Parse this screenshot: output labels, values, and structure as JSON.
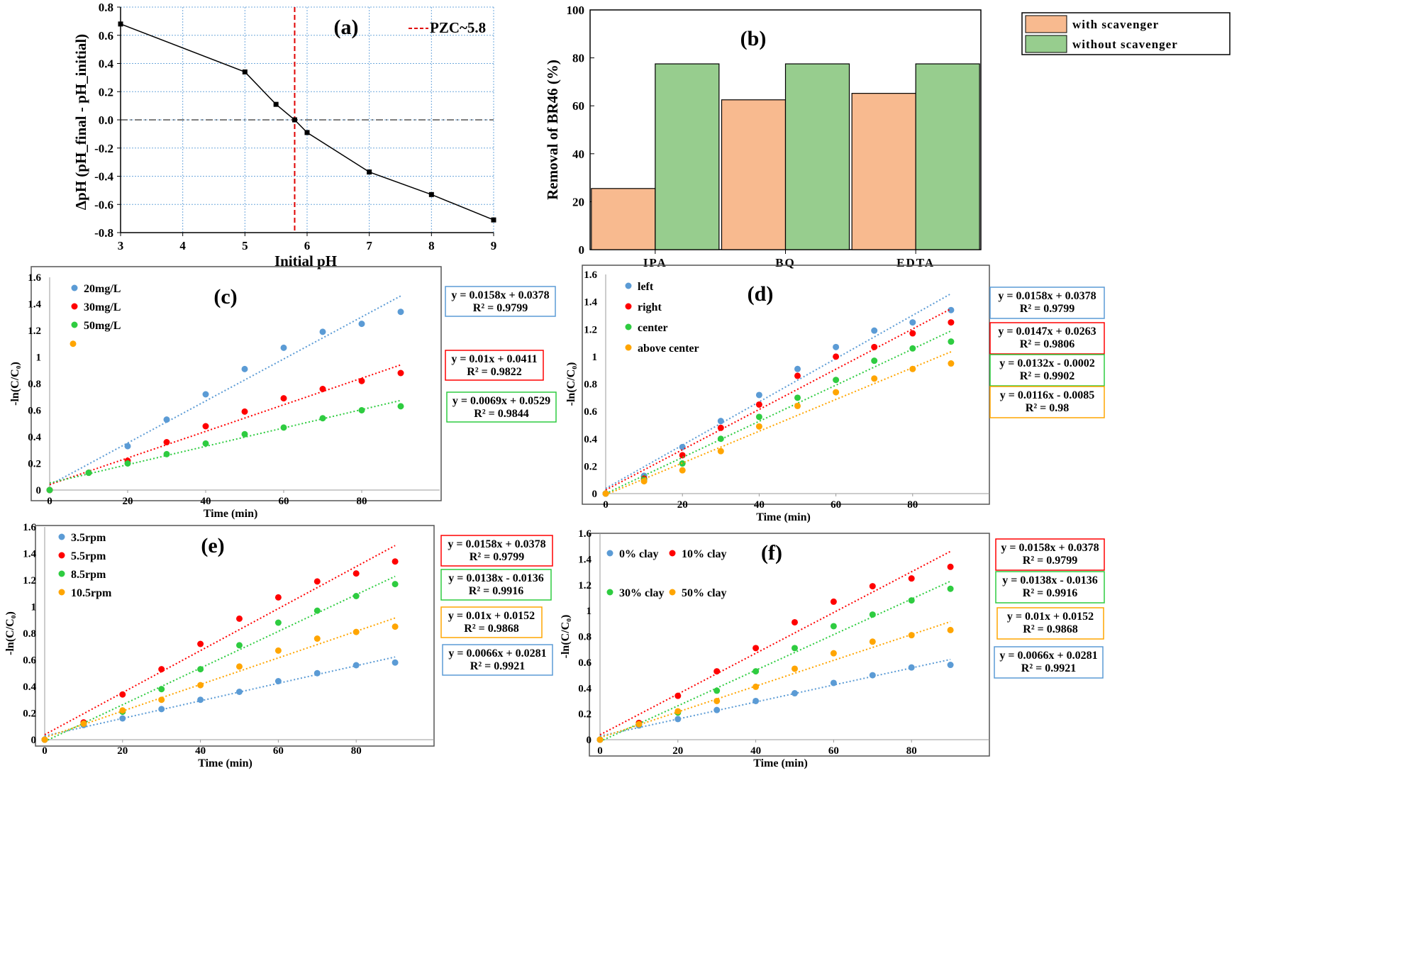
{
  "colors": {
    "blue": "#5B9BD5",
    "red": "#FF0000",
    "green": "#2ECC40",
    "orange": "#FFA500",
    "scav_bar": "#F8BA8F",
    "noscav_bar": "#97CD8E",
    "grid": "#6FA8DC",
    "pzc": "#E00000",
    "box_border": "#000000"
  },
  "chart_data": [
    {
      "id": "a",
      "type": "line",
      "panel_label": "(a)",
      "title": "",
      "xlabel": "Initial pH",
      "ylabel": "ΔpH (pH_final - pH_initial)",
      "xlim": [
        3,
        9
      ],
      "ylim": [
        -0.8,
        0.8
      ],
      "x_ticks": [
        "3",
        "4",
        "5",
        "6",
        "7",
        "8",
        "9"
      ],
      "y_ticks": [
        "0.8",
        "0.6",
        "0.4",
        "0.2",
        "0.0",
        "-0.2",
        "-0.4",
        "-0.6",
        "-0.8"
      ],
      "series": [
        {
          "name": "ΔpH",
          "x": [
            3,
            5,
            5.5,
            5.8,
            6,
            7,
            8,
            9
          ],
          "y": [
            0.68,
            0.34,
            0.11,
            0.0,
            -0.09,
            -0.37,
            -0.53,
            -0.71
          ]
        }
      ],
      "pzc_x": 5.8,
      "pzc_label": "PZC~5.8",
      "grid": true
    },
    {
      "id": "b",
      "type": "bar",
      "panel_label": "(b)",
      "xlabel": "",
      "ylabel": "Removal of BR46 (%)",
      "ylim": [
        0,
        100
      ],
      "y_ticks": [
        "100",
        "80",
        "60",
        "40",
        "20",
        "0"
      ],
      "categories": [
        "IPA",
        "BQ",
        "EDTA"
      ],
      "series": [
        {
          "name": "with scavenger",
          "values": [
            25.5,
            62.5,
            65.2
          ]
        },
        {
          "name": "without scavenger",
          "values": [
            77.5,
            77.5,
            77.5
          ]
        }
      ],
      "legend_position": "top-right"
    },
    {
      "id": "c",
      "type": "scatter",
      "panel_label": "(c)",
      "xlabel": "Time (min)",
      "ylabel": "-ln(C/C₀)",
      "xlim": [
        0,
        100
      ],
      "ylim": [
        0,
        1.6
      ],
      "x_ticks": [
        "0",
        "20",
        "40",
        "60",
        "80"
      ],
      "y_ticks": [
        "1.6",
        "1.4",
        "1.2",
        "1",
        "0.8",
        "0.6",
        "0.4",
        "0.2",
        "0"
      ],
      "series": [
        {
          "name": "20mg/L",
          "x": [
            0,
            20,
            30,
            40,
            50,
            60,
            70,
            80,
            90
          ],
          "y": [
            0,
            0.33,
            0.53,
            0.72,
            0.91,
            1.07,
            1.19,
            1.25,
            1.34
          ],
          "fit": [
            0.0158,
            0.0378
          ],
          "eq": "y = 0.0158x + 0.0378",
          "r2": "R² = 0.9799"
        },
        {
          "name": "30mg/L",
          "x": [
            0,
            10,
            20,
            30,
            40,
            50,
            60,
            70,
            80,
            90
          ],
          "y": [
            0,
            0.13,
            0.22,
            0.36,
            0.48,
            0.59,
            0.69,
            0.76,
            0.82,
            0.88
          ],
          "fit": [
            0.01,
            0.0411
          ],
          "eq": "y = 0.01x + 0.0411",
          "r2": "R² = 0.9822"
        },
        {
          "name": "50mg/L",
          "x": [
            0,
            10,
            20,
            30,
            40,
            50,
            60,
            70,
            80,
            90
          ],
          "y": [
            0,
            0.13,
            0.2,
            0.27,
            0.35,
            0.42,
            0.47,
            0.54,
            0.6,
            0.63
          ],
          "fit": [
            0.0069,
            0.0529
          ],
          "eq": "y = 0.0069x + 0.0529",
          "r2": "R² = 0.9844"
        },
        {
          "name": "",
          "x": [
            6
          ],
          "y": [
            1.1
          ]
        }
      ],
      "legend_position": "top-left"
    },
    {
      "id": "d",
      "type": "scatter",
      "panel_label": "(d)",
      "xlabel": "Time (min)",
      "ylabel": "-ln(C/C₀)",
      "xlim": [
        0,
        100
      ],
      "ylim": [
        0,
        1.6
      ],
      "x_ticks": [
        "0",
        "20",
        "40",
        "60",
        "80"
      ],
      "y_ticks": [
        "1.6",
        "1.4",
        "1.2",
        "1",
        "0.8",
        "0.6",
        "0.4",
        "0.2",
        "0"
      ],
      "series": [
        {
          "name": "left",
          "x": [
            0,
            10,
            20,
            30,
            40,
            50,
            60,
            70,
            80,
            90
          ],
          "y": [
            0,
            0.13,
            0.34,
            0.53,
            0.72,
            0.91,
            1.07,
            1.19,
            1.25,
            1.34
          ],
          "fit": [
            0.0158,
            0.0378
          ],
          "eq": "y = 0.0158x + 0.0378",
          "r2": "R² = 0.9799"
        },
        {
          "name": "right",
          "x": [
            0,
            10,
            20,
            30,
            40,
            50,
            60,
            70,
            80,
            90
          ],
          "y": [
            0,
            0.11,
            0.28,
            0.48,
            0.65,
            0.86,
            1.0,
            1.07,
            1.17,
            1.25
          ],
          "fit": [
            0.0147,
            0.0263
          ],
          "eq": "y = 0.0147x + 0.0263",
          "r2": "R² = 0.9806"
        },
        {
          "name": "center",
          "x": [
            0,
            10,
            20,
            30,
            40,
            50,
            60,
            70,
            80,
            90
          ],
          "y": [
            0,
            0.1,
            0.22,
            0.4,
            0.56,
            0.7,
            0.83,
            0.97,
            1.06,
            1.11
          ],
          "fit": [
            0.0132,
            -0.0002
          ],
          "eq": "y = 0.0132x - 0.0002",
          "r2": "R² = 0.9902"
        },
        {
          "name": "above center",
          "x": [
            0,
            10,
            20,
            30,
            40,
            50,
            60,
            70,
            80,
            90
          ],
          "y": [
            0,
            0.09,
            0.17,
            0.31,
            0.49,
            0.64,
            0.74,
            0.84,
            0.91,
            0.95
          ],
          "fit": [
            0.0116,
            -0.0085
          ],
          "eq": "y = 0.0116x - 0.0085",
          "r2": "R² = 0.98"
        }
      ],
      "legend_position": "top-left"
    },
    {
      "id": "e",
      "type": "scatter",
      "panel_label": "(e)",
      "xlabel": "Time (min)",
      "ylabel": "-ln(C/C₀)",
      "xlim": [
        0,
        100
      ],
      "ylim": [
        0,
        1.6
      ],
      "x_ticks": [
        "0",
        "20",
        "40",
        "60",
        "80"
      ],
      "y_ticks": [
        "1.6",
        "1.4",
        "1.2",
        "1",
        "0.8",
        "0.6",
        "0.4",
        "0.2",
        "0"
      ],
      "series": [
        {
          "name": "3.5rpm",
          "x": [
            0,
            10,
            20,
            30,
            40,
            50,
            60,
            70,
            80,
            90
          ],
          "y": [
            0,
            0.11,
            0.16,
            0.23,
            0.3,
            0.36,
            0.44,
            0.5,
            0.56,
            0.58
          ],
          "fit": [
            0.0066,
            0.0281
          ],
          "eq": "y = 0.0066x + 0.0281",
          "r2": "R² = 0.9921"
        },
        {
          "name": "5.5rpm",
          "x": [
            0,
            10,
            20,
            30,
            40,
            50,
            60,
            70,
            80,
            90
          ],
          "y": [
            0,
            0.13,
            0.34,
            0.53,
            0.72,
            0.91,
            1.07,
            1.19,
            1.25,
            1.34
          ],
          "fit": [
            0.0158,
            0.0378
          ],
          "eq": "y = 0.0158x + 0.0378",
          "r2": "R² = 0.9799"
        },
        {
          "name": "8.5rpm",
          "x": [
            0,
            10,
            20,
            30,
            40,
            50,
            60,
            70,
            80,
            90
          ],
          "y": [
            0,
            0.12,
            0.21,
            0.38,
            0.53,
            0.71,
            0.88,
            0.97,
            1.08,
            1.17
          ],
          "fit": [
            0.0138,
            -0.0136
          ],
          "eq": "y = 0.0138x - 0.0136",
          "r2": "R² = 0.9916"
        },
        {
          "name": "10.5rpm",
          "x": [
            0,
            10,
            20,
            30,
            40,
            50,
            60,
            70,
            80,
            90
          ],
          "y": [
            0,
            0.12,
            0.22,
            0.3,
            0.41,
            0.55,
            0.67,
            0.76,
            0.81,
            0.85
          ],
          "fit": [
            0.01,
            0.0152
          ],
          "eq": "y = 0.01x + 0.0152",
          "r2": "R² = 0.9868"
        }
      ],
      "legend_position": "top-left"
    },
    {
      "id": "f",
      "type": "scatter",
      "panel_label": "(f)",
      "xlabel": "Time (min)",
      "ylabel": "-ln(C/C₀)",
      "xlim": [
        0,
        100
      ],
      "ylim": [
        0,
        1.6
      ],
      "x_ticks": [
        "0",
        "20",
        "40",
        "60",
        "80"
      ],
      "y_ticks": [
        "1.6",
        "1.4",
        "1.2",
        "1",
        "0.8",
        "0.6",
        "0.4",
        "0.2",
        "0"
      ],
      "series": [
        {
          "name": "0% clay",
          "x": [
            0,
            10,
            20,
            30,
            40,
            50,
            60,
            70,
            80,
            90
          ],
          "y": [
            0,
            0.11,
            0.16,
            0.23,
            0.3,
            0.36,
            0.44,
            0.5,
            0.56,
            0.58
          ],
          "fit": [
            0.0066,
            0.0281
          ],
          "eq": "y = 0.0066x + 0.0281",
          "r2": "R² = 0.9921"
        },
        {
          "name": "10% clay",
          "x": [
            0,
            10,
            20,
            30,
            40,
            50,
            60,
            70,
            80,
            90
          ],
          "y": [
            0,
            0.13,
            0.34,
            0.53,
            0.71,
            0.91,
            1.07,
            1.19,
            1.25,
            1.34
          ],
          "fit": [
            0.0158,
            0.0378
          ],
          "eq": "y = 0.0158x + 0.0378",
          "r2": "R² = 0.9799"
        },
        {
          "name": "30% clay",
          "x": [
            0,
            10,
            20,
            30,
            40,
            50,
            60,
            70,
            80,
            90
          ],
          "y": [
            0,
            0.12,
            0.21,
            0.38,
            0.53,
            0.71,
            0.88,
            0.97,
            1.08,
            1.17
          ],
          "fit": [
            0.0138,
            -0.0136
          ],
          "eq": "y = 0.0138x - 0.0136",
          "r2": "R² = 0.9916"
        },
        {
          "name": "50% clay",
          "x": [
            0,
            10,
            20,
            30,
            40,
            50,
            60,
            70,
            80,
            90
          ],
          "y": [
            0,
            0.12,
            0.22,
            0.3,
            0.41,
            0.55,
            0.67,
            0.76,
            0.81,
            0.85
          ],
          "fit": [
            0.01,
            0.0152
          ],
          "eq": "y = 0.01x + 0.0152",
          "r2": "R² = 0.9868"
        }
      ],
      "legend_position": "top-left"
    }
  ]
}
